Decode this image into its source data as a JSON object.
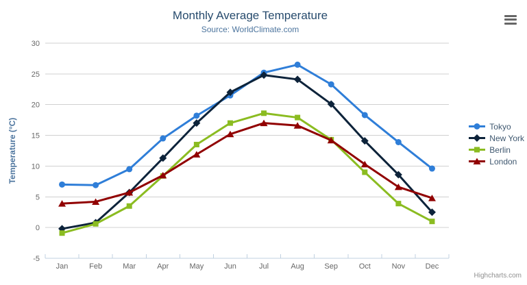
{
  "chart_data": {
    "type": "line",
    "title": "Monthly Average Temperature",
    "subtitle": "Source: WorldClimate.com",
    "xlabel": "",
    "ylabel": "Temperature (°C)",
    "categories": [
      "Jan",
      "Feb",
      "Mar",
      "Apr",
      "May",
      "Jun",
      "Jul",
      "Aug",
      "Sep",
      "Oct",
      "Nov",
      "Dec"
    ],
    "yticks": [
      -5,
      0,
      5,
      10,
      15,
      20,
      25,
      30
    ],
    "ylim": [
      -5,
      30
    ],
    "grid": true,
    "legend_position": "right",
    "series": [
      {
        "name": "Tokyo",
        "color": "#2f7ed8",
        "symbol": "circle",
        "values": [
          7.0,
          6.9,
          9.5,
          14.5,
          18.2,
          21.5,
          25.2,
          26.5,
          23.3,
          18.3,
          13.9,
          9.6
        ]
      },
      {
        "name": "New York",
        "color": "#0d233a",
        "symbol": "diamond",
        "values": [
          -0.2,
          0.8,
          5.7,
          11.3,
          17.0,
          22.0,
          24.8,
          24.1,
          20.1,
          14.1,
          8.6,
          2.5
        ]
      },
      {
        "name": "Berlin",
        "color": "#8bbc21",
        "symbol": "square",
        "values": [
          -0.9,
          0.6,
          3.5,
          8.4,
          13.5,
          17.0,
          18.6,
          17.9,
          14.3,
          9.0,
          3.9,
          1.0
        ]
      },
      {
        "name": "London",
        "color": "#910000",
        "symbol": "triangle",
        "values": [
          3.9,
          4.2,
          5.7,
          8.5,
          11.9,
          15.2,
          17.0,
          16.6,
          14.2,
          10.3,
          6.6,
          4.8
        ]
      }
    ]
  },
  "credits": {
    "label": "Highcharts.com"
  },
  "icons": {
    "export_menu": "hamburger-icon"
  },
  "colors": {
    "background": "#ffffff",
    "grid_line": "#d0d0d0",
    "axis_line": "#c0d0e0",
    "tick_label": "#666666",
    "title": "#274b6d",
    "subtitle": "#4d759e",
    "axis_title": "#4d759e",
    "legend_text": "#3e576f",
    "credits": "#909090",
    "menu_icon": "#666666"
  }
}
